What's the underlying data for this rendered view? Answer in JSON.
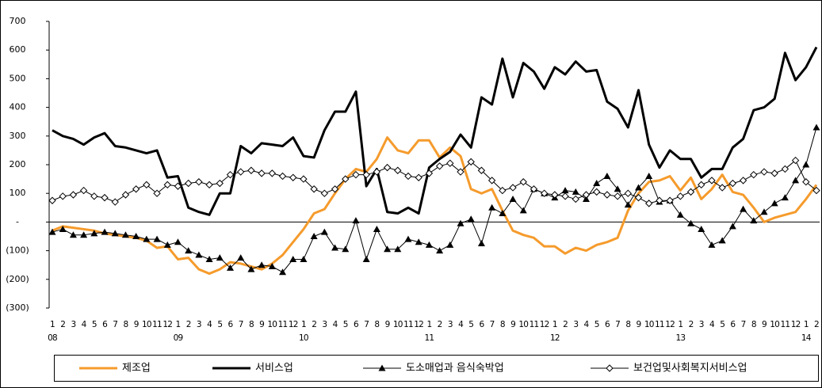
{
  "chart_data": {
    "type": "line",
    "categories": [
      "1",
      "2",
      "3",
      "4",
      "5",
      "6",
      "7",
      "8",
      "9",
      "10",
      "11",
      "12",
      "1",
      "2",
      "3",
      "4",
      "5",
      "6",
      "7",
      "8",
      "9",
      "10",
      "11",
      "12",
      "1",
      "2",
      "3",
      "4",
      "5",
      "6",
      "7",
      "8",
      "9",
      "10",
      "11",
      "12",
      "1",
      "2",
      "3",
      "4",
      "5",
      "6",
      "7",
      "8",
      "9",
      "10",
      "11",
      "12",
      "1",
      "2",
      "3",
      "4",
      "5",
      "6",
      "7",
      "8",
      "9",
      "10",
      "11",
      "12",
      "1",
      "2",
      "3",
      "4",
      "5",
      "6",
      "7",
      "8",
      "9",
      "10",
      "11",
      "12",
      "1",
      "2"
    ],
    "years": [
      "08",
      null,
      null,
      null,
      null,
      null,
      null,
      null,
      null,
      null,
      null,
      null,
      "09",
      null,
      null,
      null,
      null,
      null,
      null,
      null,
      null,
      null,
      null,
      null,
      "10",
      null,
      null,
      null,
      null,
      null,
      null,
      null,
      null,
      null,
      null,
      null,
      "11",
      null,
      null,
      null,
      null,
      null,
      null,
      null,
      null,
      null,
      null,
      null,
      "12",
      null,
      null,
      null,
      null,
      null,
      null,
      null,
      null,
      null,
      null,
      null,
      "13",
      null,
      null,
      null,
      null,
      null,
      null,
      null,
      null,
      null,
      null,
      null,
      "14",
      null
    ],
    "ylim": [
      -300,
      700
    ],
    "yticks": [
      {
        "value": -300,
        "label": "(300)"
      },
      {
        "value": -200,
        "label": "(200)"
      },
      {
        "value": -100,
        "label": "(100)"
      },
      {
        "value": 0,
        "label": "-"
      },
      100,
      200,
      300,
      400,
      500,
      600,
      700
    ],
    "grid": false,
    "series": [
      {
        "name": "제조업",
        "color": "#f59b2c",
        "width": 3,
        "marker": null,
        "values": [
          -30,
          -15,
          -20,
          -25,
          -30,
          -40,
          -45,
          -50,
          -55,
          -65,
          -90,
          -85,
          -130,
          -125,
          -165,
          -180,
          -165,
          -140,
          -145,
          -155,
          -165,
          -145,
          -115,
          -70,
          -25,
          30,
          45,
          100,
          150,
          185,
          175,
          220,
          295,
          250,
          240,
          285,
          285,
          225,
          260,
          230,
          115,
          100,
          115,
          40,
          -30,
          -45,
          -55,
          -85,
          -85,
          -110,
          -90,
          -100,
          -80,
          -70,
          -55,
          40,
          100,
          140,
          145,
          160,
          110,
          155,
          80,
          115,
          165,
          105,
          95,
          50,
          0,
          15,
          25,
          35,
          80,
          130
        ]
      },
      {
        "name": "서비스업",
        "color": "#000000",
        "width": 3,
        "marker": null,
        "values": [
          320,
          300,
          290,
          270,
          295,
          310,
          265,
          260,
          250,
          240,
          250,
          155,
          160,
          50,
          35,
          25,
          100,
          100,
          265,
          240,
          275,
          270,
          265,
          295,
          230,
          225,
          320,
          385,
          385,
          455,
          125,
          185,
          35,
          30,
          50,
          30,
          190,
          220,
          245,
          305,
          260,
          435,
          410,
          570,
          435,
          555,
          525,
          465,
          540,
          515,
          560,
          525,
          530,
          420,
          395,
          330,
          460,
          270,
          190,
          250,
          220,
          220,
          155,
          185,
          185,
          260,
          290,
          390,
          400,
          430,
          590,
          495,
          540,
          610
        ]
      },
      {
        "name": "도소매업과 음식숙박업",
        "color": "#000000",
        "width": 1,
        "marker": "triangle",
        "values": [
          -35,
          -25,
          -45,
          -45,
          -40,
          -35,
          -40,
          -45,
          -50,
          -60,
          -60,
          -80,
          -70,
          -100,
          -115,
          -130,
          -125,
          -160,
          -125,
          -165,
          -150,
          -155,
          -175,
          -130,
          -130,
          -50,
          -35,
          -90,
          -95,
          5,
          -130,
          -25,
          -95,
          -95,
          -60,
          -70,
          -80,
          -100,
          -80,
          -5,
          10,
          -75,
          50,
          30,
          80,
          40,
          115,
          100,
          85,
          110,
          105,
          80,
          135,
          160,
          115,
          60,
          120,
          160,
          70,
          75,
          25,
          -5,
          -25,
          -80,
          -65,
          -15,
          45,
          5,
          35,
          65,
          85,
          145,
          200,
          330
        ]
      },
      {
        "name": "보건업및사회복지서비스업",
        "color": "#000000",
        "width": 1,
        "marker": "diamond",
        "values": [
          75,
          90,
          95,
          110,
          90,
          85,
          70,
          95,
          115,
          130,
          100,
          130,
          125,
          135,
          140,
          130,
          135,
          165,
          175,
          180,
          170,
          170,
          160,
          155,
          150,
          115,
          100,
          115,
          150,
          165,
          165,
          175,
          190,
          180,
          160,
          155,
          170,
          195,
          205,
          175,
          210,
          180,
          145,
          110,
          120,
          140,
          115,
          100,
          95,
          90,
          80,
          95,
          105,
          95,
          90,
          100,
          85,
          65,
          75,
          75,
          90,
          105,
          130,
          145,
          120,
          135,
          145,
          165,
          175,
          170,
          185,
          215,
          140,
          110
        ]
      }
    ]
  }
}
